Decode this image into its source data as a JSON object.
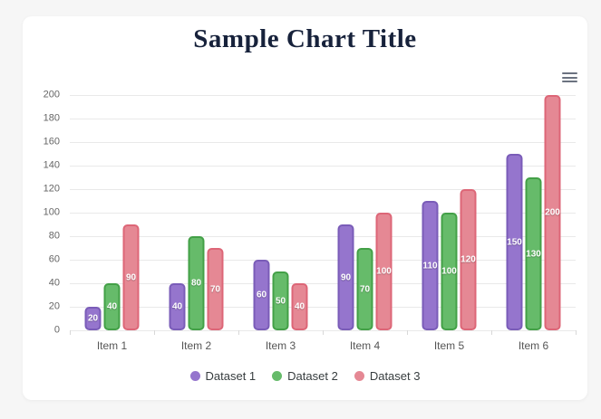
{
  "page": {
    "background": "#f6f6f6",
    "card_background": "#ffffff"
  },
  "header": {
    "title": "Sample Chart Title",
    "title_color": "#17223b"
  },
  "toolbar": {
    "menu_icon": "hamburger-menu-icon"
  },
  "chart_data": {
    "type": "bar",
    "title": "Sample Chart Title",
    "categories": [
      "Item 1",
      "Item 2",
      "Item 3",
      "Item 4",
      "Item 5",
      "Item 6"
    ],
    "series": [
      {
        "name": "Dataset 1",
        "values": [
          20,
          40,
          60,
          90,
          110,
          150
        ],
        "fill": "#9575cd",
        "border": "#7a5cb8"
      },
      {
        "name": "Dataset 2",
        "values": [
          40,
          80,
          50,
          70,
          100,
          130
        ],
        "fill": "#66bb6a",
        "border": "#43a047"
      },
      {
        "name": "Dataset 3",
        "values": [
          90,
          70,
          40,
          100,
          120,
          200
        ],
        "fill": "#e58894",
        "border": "#dd6677"
      }
    ],
    "xlabel": "",
    "ylabel": "",
    "ylim": [
      0,
      200
    ],
    "ytick_step": 20,
    "grid": true,
    "gridline_color": "#e9e9e9",
    "value_labels": true,
    "legend_position": "bottom"
  }
}
